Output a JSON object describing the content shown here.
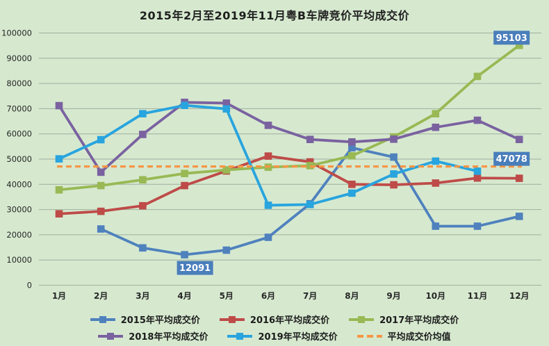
{
  "title": "2015年2月至2019年11月粤B车牌竞价平均成交价",
  "chart_data": {
    "type": "line",
    "title": "2015年2月至2019年11月粤B车牌竞价平均成交价",
    "categories": [
      "1月",
      "2月",
      "3月",
      "4月",
      "5月",
      "6月",
      "7月",
      "8月",
      "9月",
      "10月",
      "11月",
      "12月"
    ],
    "yticks": [
      0,
      10000,
      20000,
      30000,
      40000,
      50000,
      60000,
      70000,
      80000,
      90000,
      100000
    ],
    "ylim": [
      0,
      100000
    ],
    "grid": true,
    "legend_position": "bottom",
    "colors": {
      "background": "#D6E9CF",
      "gridline": "#9FAE9F",
      "axis_text": "#262626",
      "label_box": "#4A7EBB",
      "label_text": "#FFFFFF"
    },
    "series": [
      {
        "name": "2015年平均成交价",
        "color": "#4F81BD",
        "marker": "square",
        "values": [
          null,
          22300,
          14800,
          12091,
          13900,
          19000,
          32300,
          54500,
          50800,
          23400,
          23400,
          27300
        ]
      },
      {
        "name": "2016年平均成交价",
        "color": "#BE4B48",
        "marker": "square",
        "values": [
          28300,
          29300,
          31500,
          39500,
          45300,
          51200,
          48900,
          40000,
          39800,
          40500,
          42500,
          42400
        ]
      },
      {
        "name": "2017年平均成交价",
        "color": "#98B954",
        "marker": "square",
        "values": [
          37800,
          39500,
          41800,
          44300,
          45700,
          46800,
          47400,
          51300,
          58800,
          68000,
          82800,
          95103
        ]
      },
      {
        "name": "2018年平均成交价",
        "color": "#7A62A0",
        "marker": "square",
        "values": [
          71200,
          44800,
          59800,
          72500,
          72200,
          63400,
          57800,
          56800,
          57900,
          62600,
          65400,
          57800
        ]
      },
      {
        "name": "2019年平均成交价",
        "color": "#28A4DE",
        "marker": "square",
        "values": [
          50100,
          57700,
          68000,
          71300,
          69900,
          31700,
          32000,
          36500,
          44100,
          49200,
          45200,
          null
        ]
      },
      {
        "name": "平均成交价均值",
        "color": "#F79646",
        "line_style": "dashed",
        "constant": 47078
      }
    ],
    "annotations": [
      {
        "text": "12091",
        "series_index": 0,
        "point_index": 3,
        "placement": "below"
      },
      {
        "text": "95103",
        "series_index": 2,
        "point_index": 11,
        "placement": "above-left"
      },
      {
        "text": "47078",
        "series_index": 5,
        "point_index": 11,
        "placement": "above-left"
      }
    ]
  }
}
